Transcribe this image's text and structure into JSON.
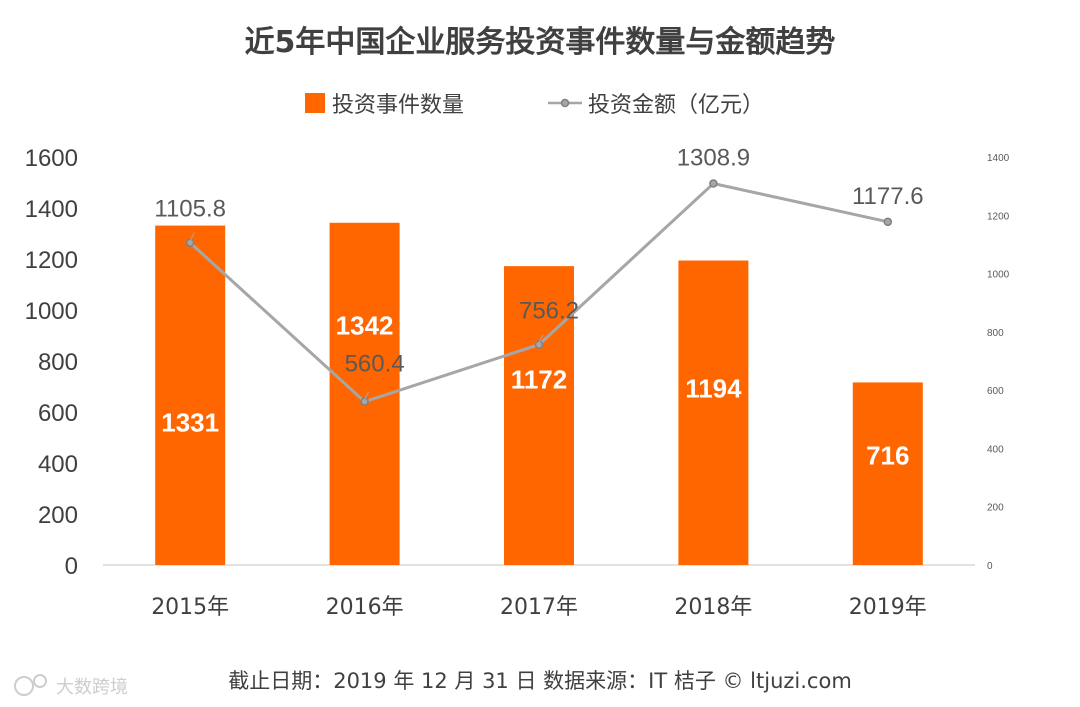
{
  "chart_data": {
    "type": "bar",
    "title": "近5年中国企业服务投资事件数量与金额趋势",
    "categories": [
      "2015年",
      "2016年",
      "2017年",
      "2018年",
      "2019年"
    ],
    "series": [
      {
        "name": "投资事件数量",
        "type": "bar",
        "axis": "left",
        "values": [
          1331,
          1342,
          1172,
          1194,
          716
        ],
        "labels": [
          "1331",
          "1342",
          "1172",
          "1194",
          "716"
        ],
        "color": "#ff6600"
      },
      {
        "name": "投资金额（亿元）",
        "type": "line",
        "axis": "right",
        "values": [
          1105.8,
          560.4,
          756.2,
          1308.9,
          1177.6
        ],
        "labels": [
          "1105.8",
          "560.4",
          "756.2",
          "1308.9",
          "1177.6"
        ],
        "color": "#a6a6a6"
      }
    ],
    "left_axis": {
      "min": 0,
      "max": 1600,
      "ticks": [
        "0",
        "200",
        "400",
        "600",
        "800",
        "1000",
        "1200",
        "1400",
        "1600"
      ]
    },
    "right_axis": {
      "min": 0,
      "max": 1400,
      "ticks": [
        "0",
        "200",
        "400",
        "600",
        "800",
        "1000",
        "1200",
        "1400"
      ]
    },
    "legend_position": "top-center",
    "grid": false
  },
  "footer": {
    "source": "截止日期：2019 年 12 月 31 日 数据来源：IT 桔子 © ltjuzi.com"
  },
  "watermark": {
    "text": "大数跨境"
  }
}
